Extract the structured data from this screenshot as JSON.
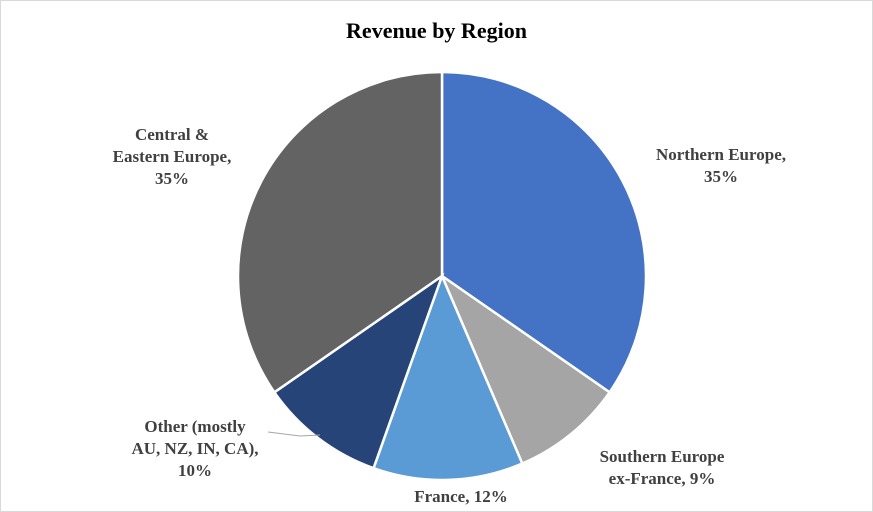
{
  "chart_data": {
    "type": "pie",
    "title": "Revenue by Region",
    "slices": [
      {
        "label": "Northern Europe,",
        "lines": [
          "Northern Europe,",
          "35%"
        ],
        "value": 35,
        "color": "#4472c4"
      },
      {
        "label": "Southern Europe ex-France,",
        "lines": [
          "Southern Europe",
          "ex-France, 9%"
        ],
        "value": 9,
        "color": "#a5a5a5"
      },
      {
        "label": "France,",
        "lines": [
          "France, 12%"
        ],
        "value": 12,
        "color": "#5b9bd5"
      },
      {
        "label": "Other (mostly AU, NZ, IN, CA),",
        "lines": [
          "Other (mostly",
          "AU, NZ, IN, CA),",
          "10%"
        ],
        "value": 10,
        "color": "#264478"
      },
      {
        "label": "Central & Eastern Europe,",
        "lines": [
          "Central &",
          "Eastern Europe,",
          "35%"
        ],
        "value": 35,
        "color": "#636363"
      }
    ],
    "start_angle": "12 o'clock",
    "direction": "clockwise",
    "legend": "none"
  }
}
